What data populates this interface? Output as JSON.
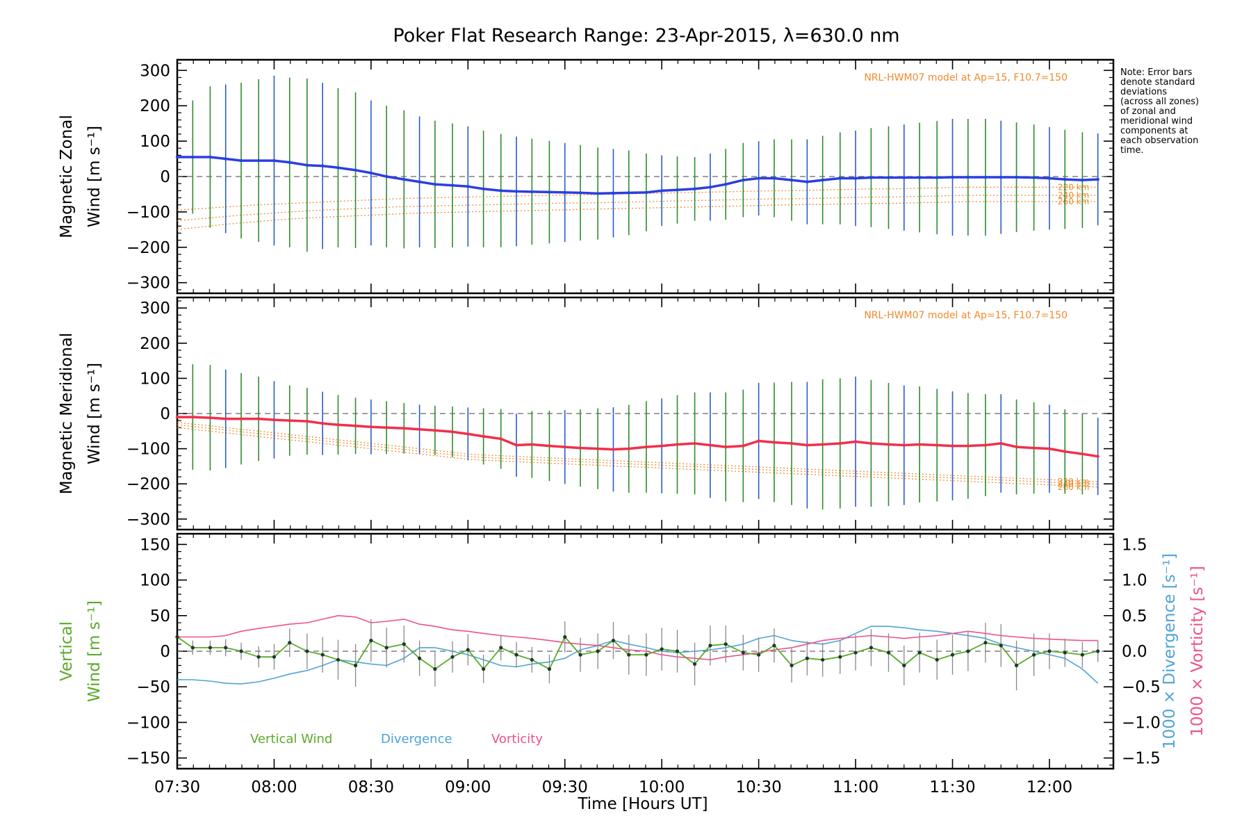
{
  "title": "Poker Flat Research Range: 23-Apr-2015, λ=630.0 nm",
  "note_lines": [
    "Note: Error bars",
    "denote standard",
    "deviations",
    "(across all zones)",
    "of zonal and",
    "meridional wind",
    "components at",
    "each observation",
    "time."
  ],
  "model_label": "NRL-HWM07 model at Ap=15, F10.7=150",
  "altitude_labels": [
    "220 km",
    "240 km",
    "260 km"
  ],
  "xlabel": "Time [Hours UT]",
  "x_ticks": [
    "07:30",
    "08:00",
    "08:30",
    "09:00",
    "09:30",
    "10:00",
    "10:30",
    "11:00",
    "11:30",
    "12:00"
  ],
  "legend": {
    "vertical": "Vertical Wind",
    "divergence": "Divergence",
    "vorticity": "Vorticity"
  },
  "colors": {
    "zonal": "#2b3fe0",
    "meridional": "#f0304a",
    "vertical": "#5aaa2a",
    "divergence": "#4fa3d8",
    "vorticity": "#f0508a",
    "model": "#f28a2e",
    "errorbar_green": "#2e8b2e",
    "errorbar_blue": "#2a5cc8"
  },
  "chart_data": [
    {
      "type": "line",
      "name": "zonal",
      "ylabel_lines": [
        "Magnetic Zonal",
        "Wind [m s⁻¹]"
      ],
      "ylim": [
        -330,
        330
      ],
      "y_ticks": [
        300,
        200,
        100,
        0,
        -100,
        -200,
        -300
      ],
      "x_hours": [
        7.5,
        7.58,
        7.67,
        7.75,
        7.83,
        7.92,
        8.0,
        8.08,
        8.17,
        8.25,
        8.33,
        8.42,
        8.5,
        8.58,
        8.67,
        8.75,
        8.83,
        8.92,
        9.0,
        9.08,
        9.17,
        9.25,
        9.33,
        9.42,
        9.5,
        9.58,
        9.67,
        9.75,
        9.83,
        9.92,
        10.0,
        10.08,
        10.17,
        10.25,
        10.33,
        10.42,
        10.5,
        10.58,
        10.67,
        10.75,
        10.83,
        10.92,
        11.0,
        11.08,
        11.17,
        11.25,
        11.33,
        11.42,
        11.5,
        11.58,
        11.67,
        11.75,
        11.83,
        11.92,
        12.0,
        12.08,
        12.17,
        12.25
      ],
      "values": [
        55,
        55,
        55,
        50,
        45,
        45,
        45,
        40,
        32,
        30,
        25,
        18,
        10,
        0,
        -8,
        -15,
        -22,
        -25,
        -28,
        -35,
        -40,
        -42,
        -43,
        -44,
        -45,
        -46,
        -48,
        -47,
        -46,
        -45,
        -40,
        -38,
        -35,
        -30,
        -22,
        -10,
        -5,
        -5,
        -10,
        -15,
        -10,
        -5,
        -5,
        -3,
        -3,
        -3,
        -3,
        -3,
        -2,
        -2,
        -2,
        -2,
        -2,
        -3,
        -5,
        -8,
        -10,
        -8
      ],
      "errors": [
        0,
        160,
        200,
        210,
        220,
        230,
        240,
        240,
        245,
        235,
        225,
        220,
        205,
        200,
        195,
        185,
        180,
        175,
        170,
        165,
        160,
        155,
        150,
        145,
        140,
        135,
        130,
        125,
        120,
        110,
        100,
        95,
        90,
        95,
        100,
        105,
        105,
        110,
        115,
        120,
        125,
        130,
        135,
        140,
        145,
        150,
        155,
        160,
        165,
        165,
        165,
        160,
        155,
        150,
        145,
        140,
        135,
        130
      ],
      "model_220": [
        -95,
        -92,
        -89,
        -86,
        -83,
        -80,
        -78,
        -76,
        -74,
        -72,
        -70,
        -68,
        -66,
        -64,
        -62,
        -61,
        -60,
        -59,
        -58,
        -57,
        -56,
        -55,
        -54,
        -53,
        -52,
        -52,
        -51,
        -50,
        -49,
        -48,
        -47,
        -46,
        -45,
        -44,
        -43,
        -42,
        -41,
        -40,
        -40,
        -39,
        -38,
        -37,
        -36,
        -35,
        -35,
        -34,
        -33,
        -32,
        -31,
        -30,
        -30,
        -30,
        -30,
        -30,
        -30,
        -30,
        -30,
        -30
      ],
      "model_240": [
        -125,
        -121,
        -117,
        -113,
        -109,
        -106,
        -103,
        -100,
        -97,
        -95,
        -93,
        -91,
        -89,
        -87,
        -85,
        -84,
        -83,
        -82,
        -81,
        -80,
        -79,
        -78,
        -77,
        -76,
        -75,
        -75,
        -74,
        -73,
        -72,
        -71,
        -70,
        -69,
        -68,
        -67,
        -66,
        -65,
        -64,
        -63,
        -63,
        -62,
        -61,
        -60,
        -59,
        -58,
        -58,
        -57,
        -56,
        -55,
        -54,
        -53,
        -53,
        -53,
        -53,
        -53,
        -53,
        -53,
        -53,
        -53
      ],
      "model_260": [
        -150,
        -145,
        -140,
        -135,
        -131,
        -127,
        -123,
        -120,
        -117,
        -115,
        -113,
        -111,
        -109,
        -107,
        -105,
        -103,
        -102,
        -101,
        -100,
        -99,
        -98,
        -97,
        -96,
        -95,
        -94,
        -93,
        -92,
        -91,
        -90,
        -89,
        -88,
        -87,
        -86,
        -85,
        -84,
        -83,
        -82,
        -81,
        -80,
        -79,
        -79,
        -78,
        -77,
        -76,
        -76,
        -75,
        -74,
        -73,
        -72,
        -71,
        -71,
        -71,
        -71,
        -71,
        -71,
        -71,
        -71,
        -71
      ]
    },
    {
      "type": "line",
      "name": "meridional",
      "ylabel_lines": [
        "Magnetic Meridional",
        "Wind [m s⁻¹]"
      ],
      "ylim": [
        -330,
        330
      ],
      "y_ticks": [
        300,
        200,
        100,
        0,
        -100,
        -200,
        -300
      ],
      "x_hours": [
        7.5,
        7.58,
        7.67,
        7.75,
        7.83,
        7.92,
        8.0,
        8.08,
        8.17,
        8.25,
        8.33,
        8.42,
        8.5,
        8.58,
        8.67,
        8.75,
        8.83,
        8.92,
        9.0,
        9.08,
        9.17,
        9.25,
        9.33,
        9.42,
        9.5,
        9.58,
        9.67,
        9.75,
        9.83,
        9.92,
        10.0,
        10.08,
        10.17,
        10.25,
        10.33,
        10.42,
        10.5,
        10.58,
        10.67,
        10.75,
        10.83,
        10.92,
        11.0,
        11.08,
        11.17,
        11.25,
        11.33,
        11.42,
        11.5,
        11.58,
        11.67,
        11.75,
        11.83,
        11.92,
        12.0,
        12.08,
        12.17,
        12.25
      ],
      "values": [
        -10,
        -10,
        -12,
        -15,
        -15,
        -15,
        -18,
        -20,
        -22,
        -28,
        -32,
        -35,
        -38,
        -40,
        -42,
        -45,
        -48,
        -52,
        -58,
        -65,
        -72,
        -90,
        -88,
        -92,
        -95,
        -98,
        -100,
        -102,
        -100,
        -95,
        -92,
        -88,
        -85,
        -90,
        -95,
        -92,
        -78,
        -82,
        -85,
        -90,
        -88,
        -85,
        -80,
        -85,
        -88,
        -90,
        -88,
        -90,
        -92,
        -92,
        -90,
        -85,
        -95,
        -98,
        -100,
        -108,
        -115,
        -122
      ],
      "errors": [
        0,
        150,
        150,
        140,
        130,
        120,
        110,
        100,
        95,
        90,
        85,
        80,
        78,
        75,
        72,
        70,
        70,
        72,
        75,
        80,
        85,
        90,
        95,
        100,
        105,
        110,
        115,
        120,
        125,
        130,
        135,
        140,
        145,
        150,
        155,
        160,
        165,
        170,
        175,
        180,
        185,
        185,
        185,
        180,
        175,
        170,
        165,
        160,
        155,
        150,
        145,
        140,
        135,
        130,
        125,
        120,
        115,
        110
      ],
      "model_220": [
        -25,
        -30,
        -35,
        -40,
        -45,
        -50,
        -55,
        -60,
        -65,
        -70,
        -75,
        -80,
        -85,
        -90,
        -95,
        -100,
        -105,
        -110,
        -115,
        -118,
        -120,
        -122,
        -124,
        -126,
        -128,
        -130,
        -132,
        -134,
        -136,
        -138,
        -140,
        -142,
        -144,
        -146,
        -148,
        -150,
        -152,
        -154,
        -156,
        -158,
        -160,
        -162,
        -164,
        -166,
        -168,
        -170,
        -172,
        -174,
        -176,
        -178,
        -180,
        -182,
        -184,
        -186,
        -188,
        -190,
        -192,
        -194
      ],
      "model_240": [
        -32,
        -37,
        -42,
        -47,
        -52,
        -57,
        -62,
        -67,
        -72,
        -77,
        -82,
        -87,
        -92,
        -97,
        -102,
        -107,
        -112,
        -117,
        -122,
        -125,
        -127,
        -129,
        -131,
        -133,
        -135,
        -137,
        -139,
        -141,
        -143,
        -145,
        -147,
        -149,
        -151,
        -153,
        -155,
        -157,
        -159,
        -161,
        -163,
        -165,
        -167,
        -169,
        -171,
        -173,
        -175,
        -177,
        -179,
        -181,
        -183,
        -185,
        -187,
        -189,
        -191,
        -193,
        -195,
        -197,
        -199,
        -201
      ],
      "model_260": [
        -40,
        -45,
        -50,
        -55,
        -60,
        -65,
        -70,
        -75,
        -80,
        -85,
        -90,
        -95,
        -100,
        -105,
        -110,
        -115,
        -120,
        -125,
        -130,
        -133,
        -135,
        -137,
        -139,
        -141,
        -143,
        -145,
        -147,
        -149,
        -151,
        -153,
        -155,
        -157,
        -159,
        -161,
        -163,
        -165,
        -167,
        -169,
        -171,
        -173,
        -175,
        -177,
        -179,
        -181,
        -183,
        -185,
        -187,
        -189,
        -191,
        -193,
        -195,
        -197,
        -199,
        -201,
        -203,
        -205,
        -207,
        -209
      ]
    },
    {
      "type": "line",
      "name": "vertical",
      "ylabel_lines": [
        "Vertical",
        "Wind [m s⁻¹]"
      ],
      "ylim": [
        -165,
        165
      ],
      "y_ticks": [
        150,
        100,
        50,
        0,
        -50,
        -100,
        -150
      ],
      "y2label_lines": [
        "1000 × Divergence [s⁻¹]",
        "1000 × Vorticity [s⁻¹]"
      ],
      "y2lim": [
        -1.65,
        1.65
      ],
      "y2_ticks": [
        1.5,
        1.0,
        0.5,
        0.0,
        -0.5,
        -1.0,
        -1.5
      ],
      "y2_tick_labels": [
        "1.5",
        "1.0",
        "0.5",
        "0.0",
        "−0.5",
        "−1.0",
        "−1.5"
      ],
      "x_hours": [
        7.5,
        7.58,
        7.67,
        7.75,
        7.83,
        7.92,
        8.0,
        8.08,
        8.17,
        8.25,
        8.33,
        8.42,
        8.5,
        8.58,
        8.67,
        8.75,
        8.83,
        8.92,
        9.0,
        9.08,
        9.17,
        9.25,
        9.33,
        9.42,
        9.5,
        9.58,
        9.67,
        9.75,
        9.83,
        9.92,
        10.0,
        10.08,
        10.17,
        10.25,
        10.33,
        10.42,
        10.5,
        10.58,
        10.67,
        10.75,
        10.83,
        10.92,
        11.0,
        11.08,
        11.17,
        11.25,
        11.33,
        11.42,
        11.5,
        11.58,
        11.67,
        11.75,
        11.83,
        11.92,
        12.0,
        12.08,
        12.17,
        12.25
      ],
      "values": [
        20,
        5,
        5,
        5,
        0,
        -8,
        -8,
        12,
        0,
        -5,
        -12,
        -20,
        15,
        5,
        10,
        -10,
        -25,
        -8,
        2,
        -25,
        5,
        -5,
        -12,
        -25,
        20,
        -5,
        0,
        15,
        -5,
        -5,
        3,
        0,
        -18,
        8,
        10,
        -2,
        -5,
        8,
        -20,
        -10,
        -12,
        -8,
        -2,
        5,
        -2,
        -20,
        -2,
        -12,
        -5,
        0,
        12,
        8,
        -20,
        -5,
        0,
        -2,
        -5,
        0
      ],
      "errors": [
        0,
        10,
        10,
        12,
        12,
        15,
        18,
        20,
        25,
        25,
        28,
        30,
        30,
        28,
        26,
        25,
        25,
        22,
        22,
        20,
        18,
        18,
        18,
        20,
        22,
        24,
        25,
        26,
        28,
        30,
        30,
        30,
        30,
        28,
        26,
        25,
        24,
        24,
        24,
        24,
        24,
        24,
        25,
        26,
        27,
        28,
        28,
        28,
        28,
        28,
        28,
        30,
        35,
        30,
        25,
        20,
        18,
        15
      ],
      "divergence": [
        -0.4,
        -0.4,
        -0.42,
        -0.45,
        -0.46,
        -0.43,
        -0.38,
        -0.32,
        -0.27,
        -0.2,
        -0.12,
        -0.15,
        -0.18,
        -0.2,
        -0.1,
        0.05,
        0.05,
        0.0,
        -0.05,
        -0.12,
        -0.2,
        -0.22,
        -0.18,
        -0.15,
        -0.1,
        0.02,
        0.08,
        0.15,
        0.1,
        0.05,
        0.0,
        -0.02,
        0.0,
        0.02,
        0.05,
        0.1,
        0.18,
        0.22,
        0.15,
        0.12,
        0.1,
        0.15,
        0.25,
        0.35,
        0.35,
        0.33,
        0.3,
        0.28,
        0.25,
        0.22,
        0.18,
        0.1,
        0.05,
        0.0,
        -0.05,
        -0.1,
        -0.25,
        -0.45
      ],
      "vorticity": [
        0.2,
        0.2,
        0.2,
        0.22,
        0.28,
        0.32,
        0.35,
        0.38,
        0.4,
        0.45,
        0.5,
        0.48,
        0.4,
        0.42,
        0.45,
        0.38,
        0.35,
        0.3,
        0.28,
        0.25,
        0.22,
        0.2,
        0.18,
        0.15,
        0.12,
        0.1,
        0.08,
        0.05,
        0.02,
        0.0,
        -0.05,
        -0.08,
        -0.1,
        -0.12,
        -0.08,
        -0.05,
        -0.02,
        0.02,
        0.05,
        0.1,
        0.15,
        0.18,
        0.2,
        0.22,
        0.2,
        0.18,
        0.2,
        0.22,
        0.25,
        0.28,
        0.25,
        0.22,
        0.2,
        0.18,
        0.17,
        0.16,
        0.15,
        0.15
      ]
    }
  ]
}
